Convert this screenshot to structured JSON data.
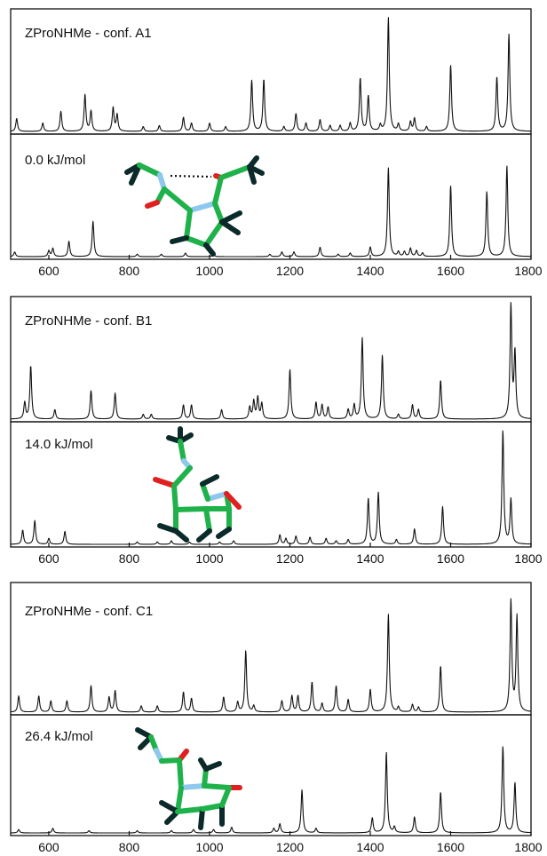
{
  "colors": {
    "spectrum": "#111111",
    "carbon": "#1fb24a",
    "nitrogen": "#8ec8ee",
    "oxygen": "#e02020",
    "hydrogen": "#0b2a2a"
  },
  "chart_data": [
    {
      "type": "line",
      "title": "",
      "xlabel": "",
      "ylabel": "",
      "xlim": [
        505,
        1800
      ],
      "xticks": [
        600,
        800,
        1000,
        1200,
        1400,
        1600,
        1800
      ],
      "xtick_labels": [
        "600",
        "800",
        "1000",
        "1200",
        "1400",
        "1600",
        "1800"
      ],
      "grid": false,
      "panels": [
        {
          "label": "ZProNHMe - conf. A1",
          "peaks": [
            [
              520,
              0.11
            ],
            [
              585,
              0.07
            ],
            [
              630,
              0.17
            ],
            [
              690,
              0.31
            ],
            [
              705,
              0.17
            ],
            [
              760,
              0.2
            ],
            [
              770,
              0.14
            ],
            [
              835,
              0.04
            ],
            [
              875,
              0.05
            ],
            [
              935,
              0.12
            ],
            [
              955,
              0.07
            ],
            [
              1000,
              0.07
            ],
            [
              1040,
              0.04
            ],
            [
              1105,
              0.43
            ],
            [
              1135,
              0.44
            ],
            [
              1185,
              0.04
            ],
            [
              1215,
              0.15
            ],
            [
              1240,
              0.07
            ],
            [
              1275,
              0.1
            ],
            [
              1300,
              0.05
            ],
            [
              1325,
              0.05
            ],
            [
              1350,
              0.07
            ],
            [
              1375,
              0.45
            ],
            [
              1395,
              0.3
            ],
            [
              1425,
              0.05
            ],
            [
              1445,
              0.96
            ],
            [
              1470,
              0.06
            ],
            [
              1500,
              0.08
            ],
            [
              1510,
              0.11
            ],
            [
              1540,
              0.04
            ],
            [
              1600,
              0.56
            ],
            [
              1715,
              0.46
            ],
            [
              1745,
              0.82
            ]
          ]
        },
        {
          "label": "0.0 kJ/mol",
          "peaks": [
            [
              515,
              0.04
            ],
            [
              600,
              0.05
            ],
            [
              610,
              0.07
            ],
            [
              650,
              0.13
            ],
            [
              710,
              0.3
            ],
            [
              820,
              0.02
            ],
            [
              880,
              0.02
            ],
            [
              940,
              0.03
            ],
            [
              1010,
              0.02
            ],
            [
              1150,
              0.02
            ],
            [
              1180,
              0.04
            ],
            [
              1210,
              0.04
            ],
            [
              1275,
              0.08
            ],
            [
              1320,
              0.02
            ],
            [
              1350,
              0.03
            ],
            [
              1400,
              0.08
            ],
            [
              1445,
              0.75
            ],
            [
              1470,
              0.04
            ],
            [
              1485,
              0.04
            ],
            [
              1500,
              0.07
            ],
            [
              1515,
              0.05
            ],
            [
              1530,
              0.03
            ],
            [
              1600,
              0.6
            ],
            [
              1690,
              0.55
            ],
            [
              1740,
              0.77
            ]
          ]
        }
      ]
    },
    {
      "type": "line",
      "title": "",
      "xlabel": "",
      "ylabel": "",
      "xlim": [
        505,
        1800
      ],
      "xticks": [
        600,
        800,
        1000,
        1200,
        1400,
        1600,
        1800
      ],
      "xtick_labels": [
        "600",
        "800",
        "1000",
        "1200",
        "1400",
        "1600",
        "1800"
      ],
      "grid": false,
      "panels": [
        {
          "label": "ZProNHMe - conf. B1",
          "peaks": [
            [
              540,
              0.14
            ],
            [
              555,
              0.45
            ],
            [
              615,
              0.08
            ],
            [
              705,
              0.24
            ],
            [
              765,
              0.22
            ],
            [
              835,
              0.04
            ],
            [
              855,
              0.04
            ],
            [
              935,
              0.12
            ],
            [
              955,
              0.12
            ],
            [
              1030,
              0.08
            ],
            [
              1100,
              0.1
            ],
            [
              1110,
              0.15
            ],
            [
              1120,
              0.18
            ],
            [
              1130,
              0.13
            ],
            [
              1200,
              0.42
            ],
            [
              1265,
              0.14
            ],
            [
              1280,
              0.12
            ],
            [
              1295,
              0.1
            ],
            [
              1345,
              0.08
            ],
            [
              1360,
              0.12
            ],
            [
              1380,
              0.69
            ],
            [
              1430,
              0.54
            ],
            [
              1470,
              0.04
            ],
            [
              1505,
              0.12
            ],
            [
              1520,
              0.08
            ],
            [
              1575,
              0.33
            ],
            [
              1750,
              0.96
            ],
            [
              1760,
              0.55
            ]
          ]
        },
        {
          "label": "14.0 kJ/mol",
          "peaks": [
            [
              535,
              0.12
            ],
            [
              565,
              0.2
            ],
            [
              600,
              0.05
            ],
            [
              640,
              0.11
            ],
            [
              820,
              0.02
            ],
            [
              870,
              0.02
            ],
            [
              905,
              0.03
            ],
            [
              950,
              0.02
            ],
            [
              1025,
              0.02
            ],
            [
              1060,
              0.03
            ],
            [
              1175,
              0.08
            ],
            [
              1190,
              0.05
            ],
            [
              1215,
              0.07
            ],
            [
              1250,
              0.06
            ],
            [
              1290,
              0.05
            ],
            [
              1315,
              0.03
            ],
            [
              1345,
              0.04
            ],
            [
              1395,
              0.39
            ],
            [
              1420,
              0.44
            ],
            [
              1465,
              0.04
            ],
            [
              1510,
              0.13
            ],
            [
              1580,
              0.32
            ],
            [
              1730,
              0.96
            ],
            [
              1750,
              0.38
            ]
          ]
        }
      ]
    },
    {
      "type": "line",
      "title": "",
      "xlabel": "",
      "ylabel": "",
      "xlim": [
        505,
        1800
      ],
      "xticks": [
        600,
        800,
        1000,
        1200,
        1400,
        1600,
        1800
      ],
      "xtick_labels": [
        "600",
        "800",
        "1000",
        "1200",
        "1400",
        "1600",
        "1800"
      ],
      "grid": false,
      "panels": [
        {
          "label": "ZProNHMe - conf. C1",
          "peaks": [
            [
              525,
              0.13
            ],
            [
              575,
              0.13
            ],
            [
              605,
              0.09
            ],
            [
              645,
              0.09
            ],
            [
              705,
              0.21
            ],
            [
              750,
              0.12
            ],
            [
              765,
              0.17
            ],
            [
              830,
              0.05
            ],
            [
              870,
              0.05
            ],
            [
              935,
              0.16
            ],
            [
              955,
              0.11
            ],
            [
              1035,
              0.12
            ],
            [
              1070,
              0.08
            ],
            [
              1090,
              0.49
            ],
            [
              1110,
              0.05
            ],
            [
              1180,
              0.09
            ],
            [
              1205,
              0.13
            ],
            [
              1220,
              0.13
            ],
            [
              1255,
              0.24
            ],
            [
              1280,
              0.07
            ],
            [
              1315,
              0.21
            ],
            [
              1345,
              0.1
            ],
            [
              1400,
              0.18
            ],
            [
              1445,
              0.78
            ],
            [
              1470,
              0.04
            ],
            [
              1505,
              0.06
            ],
            [
              1520,
              0.04
            ],
            [
              1575,
              0.37
            ],
            [
              1750,
              0.89
            ],
            [
              1765,
              0.76
            ]
          ]
        },
        {
          "label": "26.4 kJ/mol",
          "peaks": [
            [
              525,
              0.03
            ],
            [
              610,
              0.04
            ],
            [
              700,
              0.02
            ],
            [
              820,
              0.02
            ],
            [
              905,
              0.02
            ],
            [
              960,
              0.03
            ],
            [
              1010,
              0.03
            ],
            [
              1055,
              0.05
            ],
            [
              1160,
              0.04
            ],
            [
              1175,
              0.08
            ],
            [
              1230,
              0.38
            ],
            [
              1265,
              0.04
            ],
            [
              1405,
              0.13
            ],
            [
              1440,
              0.71
            ],
            [
              1460,
              0.05
            ],
            [
              1510,
              0.14
            ],
            [
              1575,
              0.36
            ],
            [
              1730,
              0.76
            ],
            [
              1760,
              0.44
            ]
          ]
        }
      ]
    }
  ]
}
